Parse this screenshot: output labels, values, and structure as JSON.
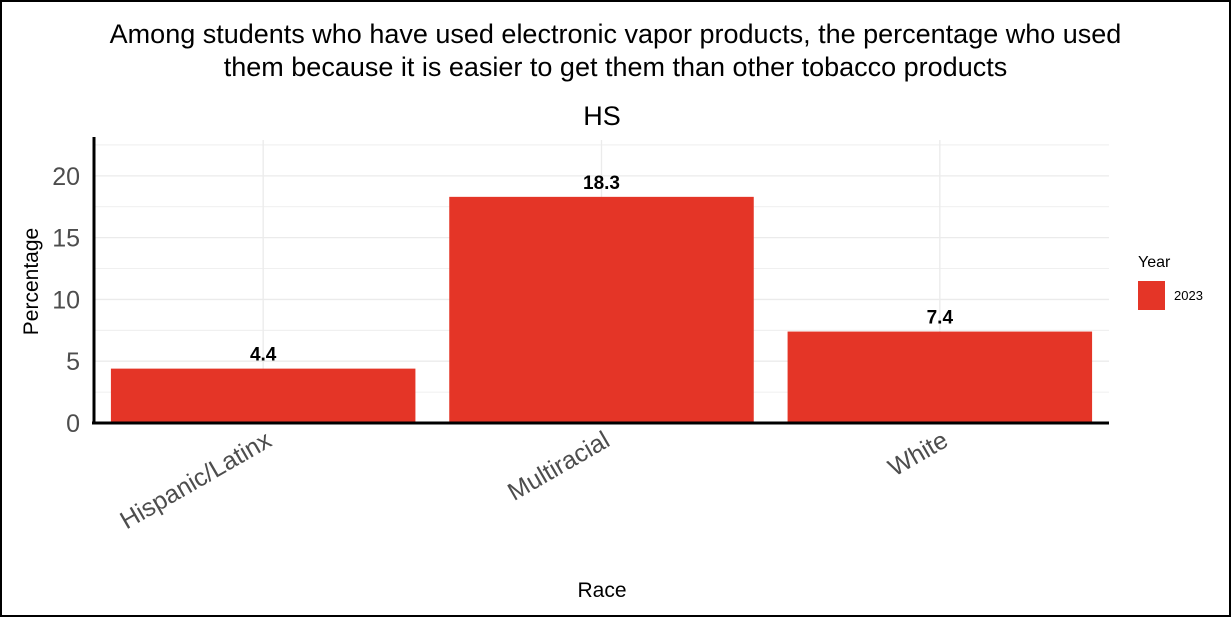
{
  "chart_data": {
    "type": "bar",
    "title_lines": [
      "Among students who have used electronic vapor products, the percentage who used",
      "them because it is easier to get them than other tobacco products"
    ],
    "subtitle": "HS",
    "xlabel": "Race",
    "ylabel": "Percentage",
    "categories": [
      "Hispanic/Latinx",
      "Multiracial",
      "White"
    ],
    "series": [
      {
        "name": "2023",
        "values": [
          4.4,
          18.3,
          7.4
        ],
        "color": "#e43527"
      }
    ],
    "data_labels": [
      "4.4",
      "18.3",
      "7.4"
    ],
    "ylim": [
      0,
      22.9
    ],
    "yticks": [
      0,
      5,
      10,
      15,
      20
    ],
    "ytick_labels": [
      "0",
      "5",
      "10",
      "15",
      "20"
    ],
    "grid": true,
    "legend": {
      "title": "Year",
      "position": "right"
    }
  }
}
